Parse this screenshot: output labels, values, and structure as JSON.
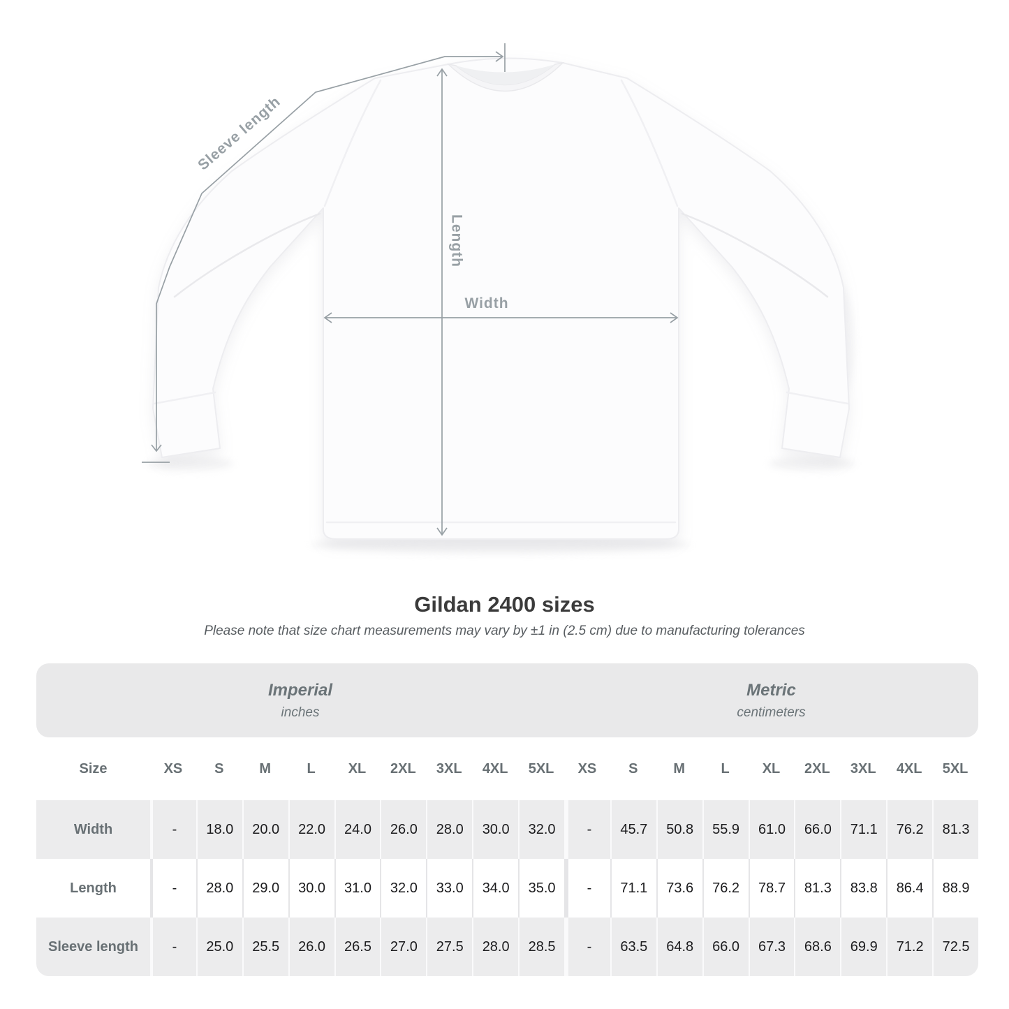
{
  "title": "Gildan 2400 sizes",
  "subtitle": "Please note that size chart measurements may vary by ±1 in (2.5 cm) due to manufacturing tolerances",
  "diagram": {
    "labels": {
      "sleeve_length": "Sleeve length",
      "length": "Length",
      "width": "Width"
    },
    "annotation_color": "#98a0a5"
  },
  "colors": {
    "band_background": "#e9e9ea",
    "alt_row_background": "#ececed",
    "header_text": "#687074",
    "value_text": "#1c1c1e"
  },
  "table": {
    "size_header": "Size",
    "groups": [
      {
        "label": "Imperial",
        "unit": "inches"
      },
      {
        "label": "Metric",
        "unit": "centimeters"
      }
    ],
    "sizes": [
      "XS",
      "S",
      "M",
      "L",
      "XL",
      "2XL",
      "3XL",
      "4XL",
      "5XL"
    ],
    "rows": [
      {
        "label": "Width",
        "imperial": [
          "-",
          "18.0",
          "20.0",
          "22.0",
          "24.0",
          "26.0",
          "28.0",
          "30.0",
          "32.0"
        ],
        "metric": [
          "-",
          "45.7",
          "50.8",
          "55.9",
          "61.0",
          "66.0",
          "71.1",
          "76.2",
          "81.3"
        ]
      },
      {
        "label": "Length",
        "imperial": [
          "-",
          "28.0",
          "29.0",
          "30.0",
          "31.0",
          "32.0",
          "33.0",
          "34.0",
          "35.0"
        ],
        "metric": [
          "-",
          "71.1",
          "73.6",
          "76.2",
          "78.7",
          "81.3",
          "83.8",
          "86.4",
          "88.9"
        ]
      },
      {
        "label": "Sleeve length",
        "imperial": [
          "-",
          "25.0",
          "25.5",
          "26.0",
          "26.5",
          "27.0",
          "27.5",
          "28.0",
          "28.5"
        ],
        "metric": [
          "-",
          "63.5",
          "64.8",
          "66.0",
          "67.3",
          "68.6",
          "69.9",
          "71.2",
          "72.5"
        ]
      }
    ]
  }
}
